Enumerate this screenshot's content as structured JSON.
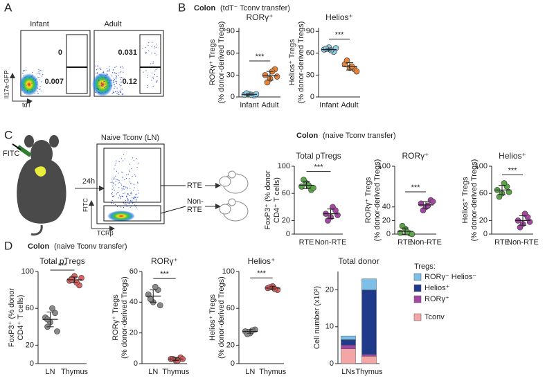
{
  "panel_A": {
    "letter": "A",
    "plots": [
      {
        "title": "Infant",
        "gate_top": 0,
        "gate_bottom": 0.007
      },
      {
        "title": "Adult",
        "gate_top": 0.031,
        "gate_bottom": 0.12
      }
    ],
    "y_axis": "Il17a-GFP",
    "x_axis": "tdT"
  },
  "panel_B": {
    "letter": "B",
    "heading_bold": "Colon",
    "heading": "(tdT⁻ Tconv transfer)"
  },
  "panel_C": {
    "letter": "C",
    "heading_bold": "Colon",
    "heading": "(naive Tconv transfer)",
    "label_fitc": "FITC",
    "time": "24h",
    "plot_title": "Naive Tconv (LN)",
    "x_axis": "TCRβ",
    "y_axis": "FITC",
    "gate_rte": "RTE",
    "gate_nonrte": [
      "Non-",
      "RTE"
    ]
  },
  "panel_D": {
    "letter": "D",
    "heading_bold": "Colon",
    "heading": "(naive Tconv transfer)"
  },
  "charts": [
    {
      "type": "dot",
      "title": "RORγ⁺",
      "ylabel": [
        "RORγ⁺ Tregs",
        "(% donor-derived Tregs)"
      ],
      "categories": [
        "Infant",
        "Adult"
      ],
      "groups": [
        {
          "color": "#8ecae6",
          "values": [
            3,
            4,
            2,
            5,
            3,
            4
          ],
          "mean": 3.5,
          "sd": 1
        },
        {
          "color": "#e8843a",
          "values": [
            30,
            25,
            38,
            20,
            35,
            28
          ],
          "mean": 29,
          "sd": 6
        }
      ],
      "ylim": [
        0,
        95
      ],
      "yticks": [
        0,
        30,
        60,
        90
      ],
      "sig": "***"
    },
    {
      "type": "dot",
      "title": "Helios⁺",
      "ylabel": [
        "Helios⁺ Tregs",
        "(% donor-derived Tregs)"
      ],
      "categories": [
        "Infant",
        "Adult"
      ],
      "groups": [
        {
          "color": "#8ecae6",
          "values": [
            65,
            68,
            62,
            66,
            64,
            67
          ],
          "mean": 65,
          "sd": 2
        },
        {
          "color": "#e8843a",
          "values": [
            45,
            40,
            38,
            50,
            42,
            35
          ],
          "mean": 42,
          "sd": 5
        }
      ],
      "ylim": [
        0,
        95
      ],
      "yticks": [
        0,
        30,
        60,
        90
      ],
      "sig": "***"
    },
    {
      "type": "dot",
      "title": "Total pTregs",
      "ylabel": [
        "FoxP3⁺ (% donor",
        "CD4⁺ T cells)"
      ],
      "categories": [
        "RTE",
        "Non-RTE"
      ],
      "groups": [
        {
          "color": "#5aa646",
          "values": [
            70,
            75,
            65,
            80,
            72,
            68
          ],
          "mean": 72,
          "sd": 5
        },
        {
          "color": "#a347a3",
          "values": [
            30,
            25,
            35,
            20,
            40,
            28
          ],
          "mean": 30,
          "sd": 7
        }
      ],
      "ylim": [
        0,
        100
      ],
      "yticks": [
        0,
        20,
        60,
        100
      ],
      "sig": "***"
    },
    {
      "type": "dot",
      "title": "RORγ⁺",
      "ylabel": [
        "RORγ⁺ Tregs",
        "(% donor-derived Tregs)"
      ],
      "categories": [
        "RTE",
        "Non-RTE"
      ],
      "groups": [
        {
          "color": "#5aa646",
          "values": [
            2,
            8,
            1,
            12,
            3,
            0
          ],
          "mean": 4,
          "sd": 5
        },
        {
          "color": "#a347a3",
          "values": [
            45,
            40,
            50,
            35,
            42,
            48
          ],
          "mean": 43,
          "sd": 5
        }
      ],
      "ylim": [
        0,
        100
      ],
      "yticks": [
        0,
        20,
        40,
        100
      ],
      "sig": "***"
    },
    {
      "type": "dot",
      "title": "Helios⁺",
      "ylabel": [
        "Helios⁺ Tregs",
        "(% donor-derived Tregs)"
      ],
      "categories": [
        "RTE",
        "Non-RTE"
      ],
      "groups": [
        {
          "color": "#5aa646",
          "values": [
            65,
            60,
            70,
            55,
            75,
            62
          ],
          "mean": 65,
          "sd": 7
        },
        {
          "color": "#a347a3",
          "values": [
            20,
            15,
            25,
            10,
            30,
            18
          ],
          "mean": 20,
          "sd": 7
        }
      ],
      "ylim": [
        0,
        100
      ],
      "yticks": [
        0,
        20,
        60,
        100
      ],
      "sig": "***"
    },
    {
      "type": "dot",
      "title": "Total pTregs",
      "ylabel": [
        "FoxP3⁺ (% donor",
        "CD4⁺ T cells)"
      ],
      "categories": [
        "LN",
        "Thymus"
      ],
      "groups": [
        {
          "color": "#8a8a8a",
          "values": [
            50,
            45,
            55,
            40,
            60,
            35,
            48
          ],
          "mean": 48,
          "sd": 8
        },
        {
          "color": "#e06060",
          "values": [
            90,
            95,
            85,
            92,
            88,
            93,
            91
          ],
          "mean": 91,
          "sd": 3
        }
      ],
      "ylim": [
        0,
        100
      ],
      "yticks": [
        0,
        20,
        60,
        100
      ],
      "sig": "***"
    },
    {
      "type": "dot",
      "title": "RORγ⁺",
      "ylabel": [
        "RORγ⁺ Tregs",
        "(% donor-derived Tregs)"
      ],
      "categories": [
        "LN",
        "Thymus"
      ],
      "groups": [
        {
          "color": "#8a8a8a",
          "values": [
            45,
            40,
            48,
            42,
            50,
            38
          ],
          "mean": 44,
          "sd": 4
        },
        {
          "color": "#e06060",
          "values": [
            3,
            2,
            4,
            3,
            2,
            3
          ],
          "mean": 3,
          "sd": 1
        }
      ],
      "ylim": [
        0,
        60
      ],
      "yticks": [
        0,
        20,
        40,
        60
      ],
      "sig": "***"
    },
    {
      "type": "dot",
      "title": "Helios⁺",
      "ylabel": [
        "Helios⁺ Tregs",
        "(% donor-derived Tregs)"
      ],
      "categories": [
        "LN",
        "Thymus"
      ],
      "groups": [
        {
          "color": "#8a8a8a",
          "values": [
            35,
            33,
            37,
            32,
            36
          ],
          "mean": 35,
          "sd": 2
        },
        {
          "color": "#e06060",
          "values": [
            82,
            84,
            80,
            83,
            81
          ],
          "mean": 82,
          "sd": 2
        }
      ],
      "ylim": [
        0,
        100
      ],
      "yticks": [
        0,
        20,
        60,
        100
      ],
      "sig": "***"
    },
    {
      "type": "stacked_bar",
      "title": "Total donor",
      "ylabel": [
        "Cell number (x10²)"
      ],
      "categories": [
        "LNs",
        "Thymus"
      ],
      "legend_title": "Tregs:",
      "series": [
        {
          "name": "Tconv",
          "color": "#f4a6a6",
          "values": [
            4,
            2
          ]
        },
        {
          "name": "RORγ⁺",
          "color": "#a347a3",
          "values": [
            1,
            0.5
          ]
        },
        {
          "name": "Helios⁺",
          "color": "#1f3a8a",
          "values": [
            1.5,
            17.5
          ]
        },
        {
          "name": "RORγ⁻ Helios⁻",
          "color": "#7cc0e8",
          "values": [
            1,
            3
          ]
        }
      ],
      "ylim": [
        0,
        25
      ],
      "yticks": [
        0,
        10,
        20
      ]
    }
  ]
}
